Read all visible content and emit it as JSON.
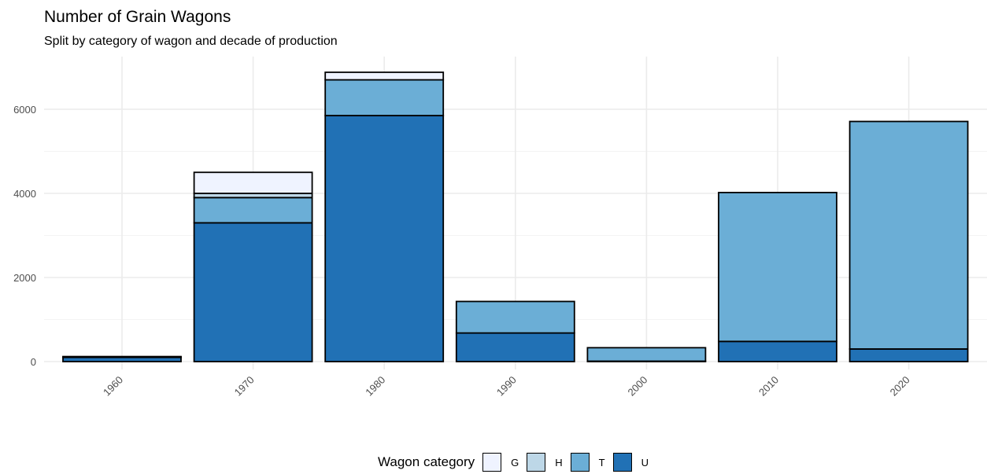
{
  "chart_data": {
    "type": "bar",
    "stacked": true,
    "title": "Number of Grain Wagons",
    "subtitle": "Split by category of wagon and decade of production",
    "xlabel": "",
    "ylabel": "",
    "ylim": [
      0,
      7000
    ],
    "yticks": [
      0,
      2000,
      4000,
      6000
    ],
    "categories": [
      "1960",
      "1970",
      "1980",
      "1990",
      "2000",
      "2010",
      "2020"
    ],
    "series": [
      {
        "name": "U",
        "color": "#2171b5",
        "values": [
          100,
          3300,
          5850,
          680,
          10,
          480,
          300
        ]
      },
      {
        "name": "T",
        "color": "#6baed6",
        "values": [
          10,
          600,
          850,
          750,
          320,
          3540,
          5410
        ]
      },
      {
        "name": "H",
        "color": "#bdd7e7",
        "values": [
          0,
          100,
          0,
          0,
          0,
          0,
          0
        ]
      },
      {
        "name": "G",
        "color": "#eff3ff",
        "values": [
          10,
          500,
          180,
          0,
          0,
          0,
          0
        ]
      }
    ],
    "grid": true,
    "legend": {
      "title": "Wagon category",
      "position": "bottom",
      "order": [
        "G",
        "H",
        "T",
        "U"
      ]
    }
  }
}
